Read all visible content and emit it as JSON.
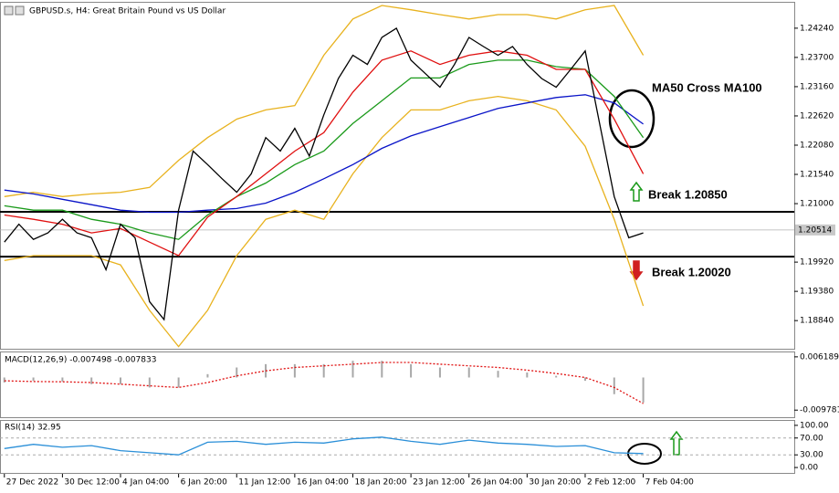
{
  "chart_data": [
    {
      "type": "line",
      "title": "GBPUSD.s, H4:  Great Britain Pound vs US Dollar",
      "xlim": [
        -0.6,
        108.8
      ],
      "xticks": [
        {
          "value": 0,
          "label": "27 Dec 2022"
        },
        {
          "value": 8,
          "label": "30 Dec 12:00"
        },
        {
          "value": 16,
          "label": "4 Jan 04:00"
        },
        {
          "value": 24,
          "label": "6 Jan 20:00"
        },
        {
          "value": 32,
          "label": "11 Jan 12:00"
        },
        {
          "value": 40,
          "label": "16 Jan 04:00"
        },
        {
          "value": 48,
          "label": "18 Jan 20:00"
        },
        {
          "value": 56,
          "label": "23 Jan 12:00"
        },
        {
          "value": 64,
          "label": "26 Jan 04:00"
        },
        {
          "value": 72,
          "label": "30 Jan 20:00"
        },
        {
          "value": 80,
          "label": "2 Feb 12:00"
        },
        {
          "value": 88,
          "label": "7 Feb 04:00"
        }
      ],
      "ylim": [
        1.1832,
        1.2471
      ],
      "yticks": [
        {
          "value": 1.2424,
          "label": "1.24240"
        },
        {
          "value": 1.237,
          "label": "1.23700"
        },
        {
          "value": 1.2316,
          "label": "1.23160"
        },
        {
          "value": 1.2262,
          "label": "1.22620"
        },
        {
          "value": 1.2208,
          "label": "1.22080"
        },
        {
          "value": 1.2154,
          "label": "1.21540"
        },
        {
          "value": 1.21,
          "label": "1.21000"
        },
        {
          "value": 1.1992,
          "label": "1.19920"
        },
        {
          "value": 1.1938,
          "label": "1.19380"
        },
        {
          "value": 1.1884,
          "label": "1.18840"
        }
      ],
      "last_price": {
        "value": 1.20514,
        "label": "1.20514"
      },
      "hlines": [
        1.2085,
        1.2002
      ],
      "annotations": [
        "MA50 Cross MA100",
        "Break 1.20850",
        "Break 1.20020"
      ],
      "series": [
        {
          "color": "#e8b21e",
          "x": [
            0,
            4,
            8,
            12,
            16,
            20,
            24,
            28,
            32,
            36,
            40,
            44,
            48,
            52,
            56,
            60,
            64,
            68,
            72,
            76,
            80,
            84,
            88
          ],
          "values": [
            1.2113,
            1.2121,
            1.2113,
            1.2118,
            1.2121,
            1.213,
            1.218,
            1.2222,
            1.2256,
            1.2273,
            1.2281,
            1.2374,
            1.2441,
            1.2466,
            1.2458,
            1.2449,
            1.2441,
            1.2449,
            1.2449,
            1.2441,
            1.2458,
            1.2466,
            1.2374
          ]
        },
        {
          "color": "#e8b21e",
          "x": [
            0,
            4,
            8,
            12,
            16,
            20,
            24,
            28,
            32,
            36,
            40,
            44,
            48,
            52,
            56,
            60,
            64,
            68,
            72,
            76,
            80,
            84,
            88
          ],
          "values": [
            1.1995,
            1.2004,
            1.2004,
            1.2004,
            1.1987,
            1.1903,
            1.1836,
            1.1903,
            1.2004,
            1.2071,
            1.2088,
            1.2071,
            1.2155,
            1.2222,
            1.2273,
            1.2273,
            1.229,
            1.2298,
            1.229,
            1.2273,
            1.2206,
            1.2071,
            1.1911
          ]
        },
        {
          "color": "#0a14c8",
          "x": [
            0,
            4,
            8,
            12,
            16,
            20,
            24,
            28,
            32,
            36,
            40,
            44,
            48,
            52,
            56,
            60,
            64,
            68,
            72,
            76,
            80,
            84,
            88
          ],
          "values": [
            1.2125,
            1.2118,
            1.2108,
            1.2098,
            1.2088,
            1.2084,
            1.2084,
            1.2088,
            1.2091,
            1.2101,
            1.2121,
            1.2146,
            1.2172,
            1.2202,
            1.2225,
            1.2242,
            1.2259,
            1.2276,
            1.2286,
            1.2296,
            1.2301,
            1.2286,
            1.2247
          ]
        },
        {
          "color": "#1a9a1a",
          "x": [
            0,
            4,
            8,
            12,
            16,
            20,
            24,
            28,
            32,
            36,
            40,
            44,
            48,
            52,
            56,
            60,
            64,
            68,
            72,
            76,
            80,
            84,
            88
          ],
          "values": [
            1.2096,
            1.2088,
            1.2088,
            1.2071,
            1.2062,
            1.2046,
            1.2034,
            1.2079,
            1.2113,
            1.2138,
            1.2172,
            1.2197,
            1.2248,
            1.229,
            1.2332,
            1.2332,
            1.2357,
            1.2365,
            1.2365,
            1.2353,
            1.2348,
            1.2298,
            1.2222
          ]
        },
        {
          "color": "#e01010",
          "x": [
            0,
            4,
            8,
            12,
            16,
            20,
            24,
            28,
            32,
            36,
            40,
            44,
            48,
            52,
            56,
            60,
            64,
            68,
            72,
            76,
            80,
            84,
            88
          ],
          "values": [
            1.2079,
            1.2071,
            1.2062,
            1.2046,
            1.2054,
            1.2029,
            1.2004,
            1.2075,
            1.2113,
            1.2155,
            1.2197,
            1.2231,
            1.2306,
            1.2365,
            1.2382,
            1.2357,
            1.2374,
            1.2382,
            1.2374,
            1.2348,
            1.2348,
            1.2256,
            1.2155
          ]
        },
        {
          "color": "#000000",
          "x": [
            0,
            2,
            4,
            6,
            8,
            10,
            12,
            14,
            16,
            18,
            20,
            22,
            24,
            26,
            28,
            30,
            32,
            34,
            36,
            38,
            40,
            42,
            44,
            46,
            48,
            50,
            52,
            54,
            56,
            58,
            60,
            62,
            64,
            66,
            68,
            70,
            72,
            74,
            76,
            78,
            80,
            82,
            84,
            86,
            88
          ],
          "values": [
            1.2029,
            1.2062,
            1.2034,
            1.2046,
            1.2071,
            1.2046,
            1.2037,
            1.1978,
            1.2062,
            1.2037,
            1.1919,
            1.1886,
            1.2088,
            1.2197,
            1.2172,
            1.2146,
            1.2121,
            1.2155,
            1.2222,
            1.2197,
            1.2239,
            1.2188,
            1.2264,
            1.2331,
            1.2374,
            1.2357,
            1.2407,
            1.2424,
            1.2365,
            1.234,
            1.2315,
            1.2357,
            1.2407,
            1.239,
            1.2374,
            1.239,
            1.2357,
            1.2331,
            1.2315,
            1.2348,
            1.2382,
            1.2247,
            1.2113,
            1.2037,
            1.2046
          ]
        }
      ]
    },
    {
      "type": "macd",
      "label": "MACD(12,26,9) -0.007498 -0.007833",
      "xlim": [
        -0.6,
        108.8
      ],
      "ylim": [
        -0.01191,
        0.00752
      ],
      "yticks": [
        0.006189,
        -0.009781
      ],
      "x": [
        0,
        4,
        8,
        12,
        16,
        20,
        24,
        28,
        32,
        36,
        40,
        44,
        48,
        52,
        56,
        60,
        64,
        68,
        72,
        76,
        80,
        84,
        88
      ],
      "series": [
        {
          "color": "#a8a8a8",
          "values": [
            -0.0015,
            -0.001,
            -0.0012,
            -0.002,
            -0.002,
            -0.003,
            -0.003,
            0.001,
            0.003,
            0.004,
            0.004,
            0.004,
            0.005,
            0.005,
            0.004,
            0.003,
            0.003,
            0.002,
            0.0015,
            0.0005,
            -0.001,
            -0.005,
            -0.0075
          ]
        },
        {
          "color": "#e01010",
          "values": [
            -0.001,
            -0.0012,
            -0.0013,
            -0.0015,
            -0.002,
            -0.0025,
            -0.003,
            -0.0015,
            0.0005,
            0.002,
            0.003,
            0.0035,
            0.004,
            0.0045,
            0.0045,
            0.004,
            0.0035,
            0.003,
            0.0022,
            0.0012,
            0,
            -0.003,
            -0.0078
          ]
        }
      ]
    },
    {
      "type": "line",
      "label": "RSI(14) 32.95",
      "xlim": [
        -0.6,
        108.8
      ],
      "ylim": [
        -12.8,
        110.6
      ],
      "yticks": [
        {
          "value": 100,
          "label": "100.00"
        },
        {
          "value": 70,
          "label": "70.00"
        },
        {
          "value": 30,
          "label": "30.00"
        },
        {
          "value": 0,
          "label": "0.00"
        }
      ],
      "levels": [
        70,
        30
      ],
      "series": [
        {
          "color": "#2a8fd8",
          "x": [
            0,
            4,
            8,
            12,
            16,
            20,
            24,
            28,
            32,
            36,
            40,
            44,
            48,
            52,
            56,
            60,
            64,
            68,
            72,
            76,
            80,
            84,
            88
          ],
          "values": [
            45,
            55,
            48,
            52,
            40,
            35,
            30,
            60,
            62,
            55,
            60,
            58,
            68,
            72,
            62,
            55,
            65,
            58,
            55,
            50,
            52,
            35,
            33
          ]
        }
      ]
    }
  ]
}
